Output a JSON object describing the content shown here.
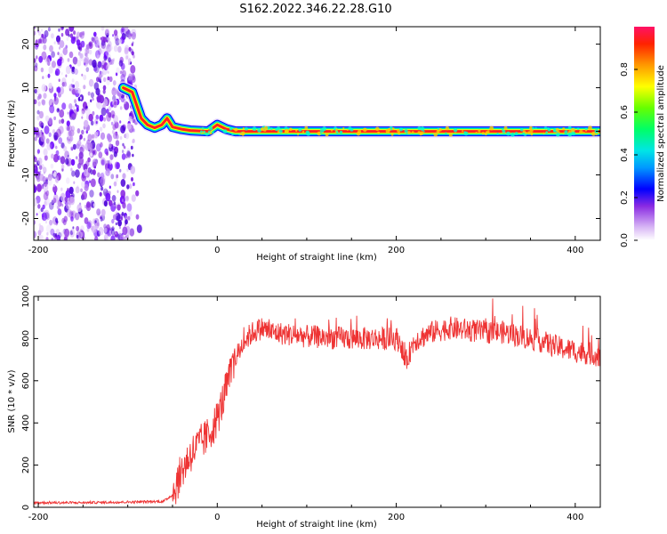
{
  "title": "S162.2022.346.22.28.G10",
  "charts": [
    {
      "type": "heatmap",
      "xlabel": "Height of straight line (km)",
      "ylabel": "Frequency (Hz)",
      "xlim": [
        -205,
        428
      ],
      "ylim": [
        -25,
        24
      ],
      "xticks": [
        -200,
        0,
        200,
        400
      ],
      "yticks": [
        -20,
        -10,
        0,
        10,
        20
      ],
      "colorbar": {
        "label": "Normalized spectral amplitude",
        "ticks": [
          0.0,
          0.2,
          0.4,
          0.6,
          0.8
        ],
        "range": [
          0,
          1
        ]
      },
      "ridge": [
        {
          "x": -105,
          "y": 10
        },
        {
          "x": -95,
          "y": 9
        },
        {
          "x": -90,
          "y": 6
        },
        {
          "x": -85,
          "y": 3
        },
        {
          "x": -78,
          "y": 1.5
        },
        {
          "x": -70,
          "y": 0.8
        },
        {
          "x": -62,
          "y": 1.5
        },
        {
          "x": -56,
          "y": 3
        },
        {
          "x": -50,
          "y": 1
        },
        {
          "x": -40,
          "y": 0.5
        },
        {
          "x": -30,
          "y": 0.2
        },
        {
          "x": -10,
          "y": 0
        },
        {
          "x": 0,
          "y": 1.5
        },
        {
          "x": 10,
          "y": 0.5
        },
        {
          "x": 20,
          "y": 0
        },
        {
          "x": 428,
          "y": 0
        }
      ]
    },
    {
      "type": "line",
      "xlabel": "Height of straight line (km)",
      "ylabel": "SNR (10 * v/v)",
      "xlim": [
        -205,
        428
      ],
      "ylim": [
        0,
        1000
      ],
      "xticks": [
        -200,
        0,
        200,
        400
      ],
      "yticks": [
        0,
        200,
        400,
        600,
        800,
        1000
      ],
      "color": "#ee3333",
      "series": [
        {
          "x": [
            -205,
            -150,
            -100,
            -60,
            -50,
            -40,
            -30,
            -20,
            -10,
            0,
            10,
            20,
            30,
            40,
            50,
            60,
            80,
            100,
            150,
            200,
            205,
            210,
            220,
            240,
            260,
            280,
            300,
            320,
            340,
            360,
            380,
            400,
            428
          ],
          "values": [
            22,
            22,
            25,
            28,
            60,
            170,
            250,
            300,
            340,
            420,
            560,
            700,
            790,
            830,
            850,
            830,
            820,
            810,
            800,
            800,
            780,
            680,
            790,
            830,
            850,
            840,
            830,
            830,
            810,
            790,
            760,
            740,
            720
          ]
        }
      ]
    }
  ]
}
